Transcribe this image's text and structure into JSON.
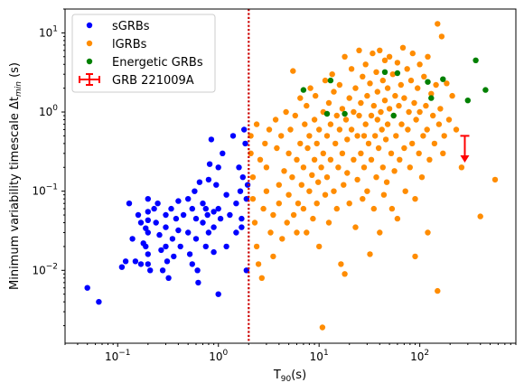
{
  "chart_data": {
    "type": "scatter",
    "x_scale": "log",
    "y_scale": "log",
    "xlim": [
      0.03,
      900
    ],
    "ylim": [
      0.0012,
      20
    ],
    "xlabel": "T",
    "xlabel_sub": "90",
    "xlabel_rest": "(s)",
    "ylabel_main": "Minimum variability timescale Δt",
    "ylabel_sub": "min",
    "ylabel_rest": " (s)",
    "x_ticks": [
      {
        "value": 0.1,
        "base": "10",
        "exp": "−1"
      },
      {
        "value": 1,
        "base": "10",
        "exp": "0"
      },
      {
        "value": 10,
        "base": "10",
        "exp": "1"
      },
      {
        "value": 100,
        "base": "10",
        "exp": "2"
      }
    ],
    "y_ticks": [
      {
        "value": 0.01,
        "base": "10",
        "exp": "−2"
      },
      {
        "value": 0.1,
        "base": "10",
        "exp": "−1"
      },
      {
        "value": 1,
        "base": "10",
        "exp": "0"
      },
      {
        "value": 10,
        "base": "10",
        "exp": "1"
      }
    ],
    "threshold_line": {
      "x": 2,
      "color": "#cc0000",
      "style": "dotted"
    },
    "legend_position": "top-left",
    "series": [
      {
        "name": "sGRBs",
        "color": "#0000ff",
        "points": [
          [
            0.05,
            0.006
          ],
          [
            0.065,
            0.004
          ],
          [
            0.11,
            0.011
          ],
          [
            0.12,
            0.013
          ],
          [
            0.13,
            0.07
          ],
          [
            0.14,
            0.025
          ],
          [
            0.15,
            0.013
          ],
          [
            0.16,
            0.05
          ],
          [
            0.17,
            0.04
          ],
          [
            0.17,
            0.012
          ],
          [
            0.18,
            0.022
          ],
          [
            0.19,
            0.034
          ],
          [
            0.19,
            0.02
          ],
          [
            0.2,
            0.08
          ],
          [
            0.2,
            0.055
          ],
          [
            0.2,
            0.043
          ],
          [
            0.2,
            0.03
          ],
          [
            0.2,
            0.016
          ],
          [
            0.2,
            0.012
          ],
          [
            0.21,
            0.01
          ],
          [
            0.23,
            0.06
          ],
          [
            0.24,
            0.04
          ],
          [
            0.25,
            0.07
          ],
          [
            0.26,
            0.028
          ],
          [
            0.27,
            0.018
          ],
          [
            0.28,
            0.01
          ],
          [
            0.3,
            0.05
          ],
          [
            0.3,
            0.035
          ],
          [
            0.3,
            0.02
          ],
          [
            0.31,
            0.013
          ],
          [
            0.32,
            0.008
          ],
          [
            0.34,
            0.06
          ],
          [
            0.35,
            0.025
          ],
          [
            0.36,
            0.015
          ],
          [
            0.38,
            0.045
          ],
          [
            0.4,
            0.032
          ],
          [
            0.4,
            0.075
          ],
          [
            0.42,
            0.02
          ],
          [
            0.45,
            0.05
          ],
          [
            0.5,
            0.08
          ],
          [
            0.5,
            0.03
          ],
          [
            0.52,
            0.016
          ],
          [
            0.55,
            0.012
          ],
          [
            0.55,
            0.06
          ],
          [
            0.58,
            0.1
          ],
          [
            0.6,
            0.045
          ],
          [
            0.6,
            0.025
          ],
          [
            0.62,
            0.01
          ],
          [
            0.63,
            0.007
          ],
          [
            0.65,
            0.13
          ],
          [
            0.7,
            0.07
          ],
          [
            0.7,
            0.04
          ],
          [
            0.75,
            0.06
          ],
          [
            0.75,
            0.02
          ],
          [
            0.78,
            0.05
          ],
          [
            0.8,
            0.03
          ],
          [
            0.8,
            0.14
          ],
          [
            0.82,
            0.22
          ],
          [
            0.85,
            0.45
          ],
          [
            0.9,
            0.055
          ],
          [
            0.9,
            0.035
          ],
          [
            0.9,
            0.017
          ],
          [
            0.95,
            0.12
          ],
          [
            1.0,
            0.005
          ],
          [
            1.0,
            0.2
          ],
          [
            1.0,
            0.06
          ],
          [
            1.05,
            0.045
          ],
          [
            1.1,
            0.3
          ],
          [
            1.2,
            0.09
          ],
          [
            1.2,
            0.02
          ],
          [
            1.3,
            0.05
          ],
          [
            1.4,
            0.5
          ],
          [
            1.5,
            0.07
          ],
          [
            1.5,
            0.03
          ],
          [
            1.6,
            0.2
          ],
          [
            1.65,
            0.1
          ],
          [
            1.7,
            0.045
          ],
          [
            1.7,
            0.035
          ],
          [
            1.75,
            0.15
          ],
          [
            1.8,
            0.6
          ],
          [
            1.85,
            0.4
          ],
          [
            1.9,
            0.08
          ],
          [
            1.9,
            0.01
          ],
          [
            1.95,
            0.12
          ]
        ]
      },
      {
        "name": "lGRBs",
        "color": "#ff8c00",
        "points": [
          [
            2.1,
            0.5
          ],
          [
            2.1,
            0.3
          ],
          [
            2.2,
            0.15
          ],
          [
            2.2,
            0.08
          ],
          [
            2.3,
            0.04
          ],
          [
            2.4,
            0.02
          ],
          [
            2.4,
            0.7
          ],
          [
            2.5,
            0.012
          ],
          [
            2.6,
            0.25
          ],
          [
            2.7,
            0.008
          ],
          [
            2.8,
            0.06
          ],
          [
            2.9,
            0.4
          ],
          [
            3,
            0.1
          ],
          [
            3,
            0.2
          ],
          [
            3.2,
            0.6
          ],
          [
            3.3,
            0.03
          ],
          [
            3.5,
            0.05
          ],
          [
            3.5,
            0.015
          ],
          [
            3.7,
            0.8
          ],
          [
            3.8,
            0.35
          ],
          [
            4,
            0.12
          ],
          [
            4,
            0.07
          ],
          [
            4.2,
            0.5
          ],
          [
            4.3,
            0.025
          ],
          [
            4.5,
            0.18
          ],
          [
            4.7,
            1.0
          ],
          [
            4.8,
            0.04
          ],
          [
            5,
            0.3
          ],
          [
            5,
            0.09
          ],
          [
            5.2,
            0.6
          ],
          [
            5.4,
            0.15
          ],
          [
            5.5,
            3.3
          ],
          [
            5.6,
            0.05
          ],
          [
            5.8,
            0.9
          ],
          [
            6,
            0.25
          ],
          [
            6,
            0.03
          ],
          [
            6.2,
            0.07
          ],
          [
            6.5,
            1.5
          ],
          [
            6.5,
            0.4
          ],
          [
            6.7,
            0.12
          ],
          [
            7,
            0.2
          ],
          [
            7,
            0.06
          ],
          [
            7.2,
            0.7
          ],
          [
            7.5,
            0.03
          ],
          [
            7.5,
            1.2
          ],
          [
            7.7,
            0.35
          ],
          [
            8,
            0.1
          ],
          [
            8,
            0.5
          ],
          [
            8.2,
            2.0
          ],
          [
            8.5,
            0.16
          ],
          [
            8.7,
            0.045
          ],
          [
            9,
            0.8
          ],
          [
            9,
            0.25
          ],
          [
            9.2,
            1.6
          ],
          [
            9.5,
            0.07
          ],
          [
            9.5,
            0.4
          ],
          [
            9.8,
            0.13
          ],
          [
            10,
            0.6
          ],
          [
            10,
            0.02
          ],
          [
            10.5,
            0.2
          ],
          [
            10.8,
            0.0019
          ],
          [
            11,
            1.0
          ],
          [
            11,
            0.3
          ],
          [
            11.5,
            0.09
          ],
          [
            11.5,
            2.5
          ],
          [
            12,
            0.5
          ],
          [
            12,
            0.15
          ],
          [
            12.5,
            1.3
          ],
          [
            12.5,
            0.04
          ],
          [
            13,
            0.7
          ],
          [
            13,
            0.25
          ],
          [
            13.5,
            3.0
          ],
          [
            14,
            0.1
          ],
          [
            14,
            1.8
          ],
          [
            14.5,
            0.4
          ],
          [
            15,
            0.9
          ],
          [
            15,
            0.06
          ],
          [
            15.5,
            0.2
          ],
          [
            16,
            2.2
          ],
          [
            16,
            0.6
          ],
          [
            16.5,
            0.012
          ],
          [
            17,
            1.1
          ],
          [
            17,
            0.3
          ],
          [
            17.5,
            0.12
          ],
          [
            18,
            0.009
          ],
          [
            18,
            5.0
          ],
          [
            18.5,
            0.8
          ],
          [
            19,
            0.45
          ],
          [
            19,
            0.17
          ],
          [
            20,
            1.5
          ],
          [
            20,
            0.07
          ],
          [
            21,
            3.5
          ],
          [
            21,
            0.6
          ],
          [
            22,
            0.25
          ],
          [
            22,
            1.0
          ],
          [
            23,
            0.035
          ],
          [
            23,
            2.0
          ],
          [
            24,
            0.5
          ],
          [
            24,
            0.14
          ],
          [
            25,
            6.0
          ],
          [
            25,
            0.9
          ],
          [
            26,
            0.3
          ],
          [
            26,
            1.3
          ],
          [
            27,
            0.08
          ],
          [
            27,
            2.8
          ],
          [
            28,
            0.5
          ],
          [
            28,
            0.2
          ],
          [
            29,
            4.0
          ],
          [
            29,
            0.7
          ],
          [
            30,
            1.6
          ],
          [
            30,
            0.1
          ],
          [
            31,
            0.4
          ],
          [
            32,
            2.3
          ],
          [
            32,
            0.016
          ],
          [
            33,
            0.9
          ],
          [
            33,
            0.25
          ],
          [
            34,
            5.5
          ],
          [
            35,
            1.2
          ],
          [
            35,
            0.06
          ],
          [
            36,
            0.5
          ],
          [
            37,
            3.2
          ],
          [
            37,
            0.15
          ],
          [
            38,
            1.8
          ],
          [
            38,
            0.8
          ],
          [
            39,
            0.35
          ],
          [
            40,
            6.0
          ],
          [
            40,
            0.03
          ],
          [
            41,
            1.0
          ],
          [
            42,
            0.6
          ],
          [
            43,
            2.5
          ],
          [
            43,
            0.2
          ],
          [
            44,
            0.09
          ],
          [
            45,
            1.4
          ],
          [
            45,
            4.5
          ],
          [
            46,
            0.45
          ],
          [
            47,
            0.13
          ],
          [
            48,
            2.0
          ],
          [
            48,
            0.7
          ],
          [
            50,
            1.1
          ],
          [
            50,
            5.0
          ],
          [
            52,
            0.3
          ],
          [
            53,
            0.06
          ],
          [
            54,
            3.0
          ],
          [
            55,
            0.9
          ],
          [
            56,
            0.18
          ],
          [
            57,
            1.6
          ],
          [
            58,
            0.5
          ],
          [
            60,
            4.2
          ],
          [
            60,
            0.045
          ],
          [
            62,
            1.2
          ],
          [
            63,
            0.25
          ],
          [
            65,
            2.2
          ],
          [
            66,
            0.7
          ],
          [
            68,
            6.5
          ],
          [
            70,
            0.35
          ],
          [
            70,
            1.5
          ],
          [
            72,
            0.1
          ],
          [
            75,
            3.5
          ],
          [
            76,
            0.6
          ],
          [
            78,
            1.0
          ],
          [
            80,
            0.2
          ],
          [
            82,
            2.5
          ],
          [
            84,
            0.4
          ],
          [
            85,
            5.5
          ],
          [
            88,
            1.3
          ],
          [
            90,
            0.08
          ],
          [
            92,
            0.8
          ],
          [
            95,
            2.0
          ],
          [
            98,
            0.3
          ],
          [
            100,
            4.0
          ],
          [
            100,
            1.0
          ],
          [
            105,
            0.15
          ],
          [
            108,
            0.5
          ],
          [
            110,
            2.8
          ],
          [
            115,
            1.2
          ],
          [
            118,
            0.6
          ],
          [
            120,
            5.0
          ],
          [
            125,
            0.25
          ],
          [
            130,
            1.7
          ],
          [
            135,
            0.9
          ],
          [
            140,
            0.4
          ],
          [
            145,
            2.2
          ],
          [
            150,
            13.0
          ],
          [
            155,
            0.7
          ],
          [
            160,
            1.1
          ],
          [
            165,
            9.0
          ],
          [
            170,
            0.3
          ],
          [
            175,
            0.5
          ],
          [
            185,
            2.3
          ],
          [
            195,
            0.8
          ],
          [
            210,
            1.6
          ],
          [
            230,
            0.6
          ],
          [
            260,
            0.2
          ],
          [
            400,
            0.048
          ],
          [
            560,
            0.14
          ],
          [
            150,
            0.0055
          ],
          [
            120,
            0.03
          ],
          [
            90,
            0.015
          ]
        ]
      },
      {
        "name": "Energetic GRBs",
        "color": "#008000",
        "points": [
          [
            7,
            1.9
          ],
          [
            12,
            0.95
          ],
          [
            13,
            2.5
          ],
          [
            18,
            0.95
          ],
          [
            45,
            3.2
          ],
          [
            55,
            0.9
          ],
          [
            60,
            3.1
          ],
          [
            120,
            2.4
          ],
          [
            130,
            1.5
          ],
          [
            170,
            2.6
          ],
          [
            300,
            1.4
          ],
          [
            360,
            4.5
          ],
          [
            450,
            1.9
          ]
        ]
      },
      {
        "name": "GRB 221009A",
        "color": "#ff0000",
        "upper_limit": {
          "x": 280,
          "y_top": 0.5,
          "y_arrow": 0.23
        }
      }
    ]
  }
}
